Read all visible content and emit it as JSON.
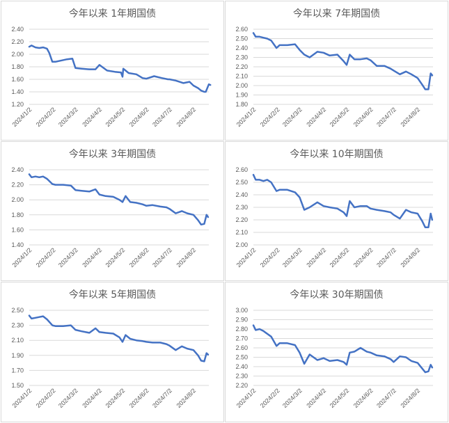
{
  "colors": {
    "series": "#4472c4",
    "grid": "#d9d9d9",
    "text": "#595959",
    "border": "#d9d9d9"
  },
  "chart_data": [
    {
      "type": "line",
      "title": "今年以来 1年期国债",
      "x_ticks": [
        "2024/1/2",
        "2024/2/2",
        "2024/3/2",
        "2024/4/2",
        "2024/5/2",
        "2024/6/2",
        "2024/7/2",
        "2024/8/2"
      ],
      "y_ticks": [
        "2.40",
        "2.20",
        "2.00",
        "1.80",
        "1.60",
        "1.40",
        "1.20"
      ],
      "ylim": [
        1.2,
        2.4
      ],
      "x": [
        "2024/1/2",
        "2024/1/5",
        "2024/1/10",
        "2024/1/15",
        "2024/1/20",
        "2024/1/25",
        "2024/1/28",
        "2024/2/1",
        "2024/2/5",
        "2024/2/20",
        "2024/2/27",
        "2024/3/2",
        "2024/3/10",
        "2024/3/20",
        "2024/3/28",
        "2024/4/2",
        "2024/4/12",
        "2024/4/22",
        "2024/4/30",
        "2024/5/2",
        "2024/5/3",
        "2024/5/10",
        "2024/5/20",
        "2024/5/28",
        "2024/6/2",
        "2024/6/12",
        "2024/6/22",
        "2024/6/30",
        "2024/7/2",
        "2024/7/10",
        "2024/7/20",
        "2024/7/28",
        "2024/8/2",
        "2024/8/8",
        "2024/8/12",
        "2024/8/16"
      ],
      "y": [
        2.12,
        2.14,
        2.11,
        2.1,
        2.11,
        2.09,
        2.02,
        1.88,
        1.88,
        1.92,
        1.93,
        1.78,
        1.77,
        1.76,
        1.76,
        1.83,
        1.74,
        1.72,
        1.71,
        1.64,
        1.77,
        1.7,
        1.68,
        1.62,
        1.61,
        1.65,
        1.62,
        1.6,
        1.6,
        1.58,
        1.54,
        1.56,
        1.5,
        1.46,
        1.42,
        1.4
      ],
      "series": [
        {
          "values_ext": [
            1.4,
            1.46,
            1.52,
            1.51
          ]
        }
      ]
    },
    {
      "type": "line",
      "title": "今年以来 7年期国债",
      "x_ticks": [
        "2024/1/2",
        "2024/2/2",
        "2024/3/2",
        "2024/4/2",
        "2024/5/2",
        "2024/6/2",
        "2024/7/2",
        "2024/8/2"
      ],
      "y_ticks": [
        "2.60",
        "2.50",
        "2.40",
        "2.30",
        "2.20",
        "2.10",
        "2.00",
        "1.90",
        "1.80"
      ],
      "ylim": [
        1.8,
        2.6
      ],
      "x": [
        "2024/1/2",
        "2024/1/5",
        "2024/1/10",
        "2024/1/15",
        "2024/1/20",
        "2024/1/25",
        "2024/2/1",
        "2024/2/5",
        "2024/2/15",
        "2024/2/25",
        "2024/3/2",
        "2024/3/8",
        "2024/3/15",
        "2024/3/25",
        "2024/4/2",
        "2024/4/10",
        "2024/4/20",
        "2024/4/28",
        "2024/5/2",
        "2024/5/6",
        "2024/5/12",
        "2024/5/20",
        "2024/5/28",
        "2024/6/2",
        "2024/6/10",
        "2024/6/20",
        "2024/6/28",
        "2024/7/2",
        "2024/7/10",
        "2024/7/18",
        "2024/7/25",
        "2024/8/2",
        "2024/8/8",
        "2024/8/12",
        "2024/8/16",
        "2024/8/19"
      ],
      "y": [
        2.56,
        2.52,
        2.52,
        2.51,
        2.5,
        2.48,
        2.4,
        2.43,
        2.43,
        2.44,
        2.38,
        2.33,
        2.3,
        2.36,
        2.35,
        2.32,
        2.33,
        2.26,
        2.22,
        2.33,
        2.28,
        2.28,
        2.29,
        2.27,
        2.21,
        2.21,
        2.18,
        2.16,
        2.12,
        2.15,
        2.12,
        2.08,
        2.01,
        1.96,
        1.96,
        2.13
      ],
      "series": [
        {
          "values_ext": [
            2.11
          ]
        }
      ]
    },
    {
      "type": "line",
      "title": "今年以来 3年期国债",
      "x_ticks": [
        "2024/1/2",
        "2024/2/2",
        "2024/3/2",
        "2024/4/2",
        "2024/5/2",
        "2024/6/2",
        "2024/7/2",
        "2024/8/2"
      ],
      "y_ticks": [
        "2.40",
        "2.20",
        "2.00",
        "1.80",
        "1.60",
        "1.40"
      ],
      "ylim": [
        1.4,
        2.4
      ],
      "x": [
        "2024/1/2",
        "2024/1/5",
        "2024/1/10",
        "2024/1/15",
        "2024/1/20",
        "2024/1/25",
        "2024/2/1",
        "2024/2/5",
        "2024/2/15",
        "2024/2/25",
        "2024/3/2",
        "2024/3/10",
        "2024/3/20",
        "2024/3/28",
        "2024/4/2",
        "2024/4/10",
        "2024/4/20",
        "2024/4/28",
        "2024/5/2",
        "2024/5/6",
        "2024/5/12",
        "2024/5/20",
        "2024/5/28",
        "2024/6/2",
        "2024/6/10",
        "2024/6/20",
        "2024/6/28",
        "2024/7/2",
        "2024/7/10",
        "2024/7/18",
        "2024/7/25",
        "2024/8/2",
        "2024/8/8",
        "2024/8/12",
        "2024/8/16",
        "2024/8/19"
      ],
      "y": [
        2.34,
        2.3,
        2.31,
        2.3,
        2.31,
        2.28,
        2.21,
        2.2,
        2.2,
        2.19,
        2.13,
        2.12,
        2.11,
        2.14,
        2.07,
        2.05,
        2.04,
        2.0,
        1.97,
        2.05,
        1.97,
        1.96,
        1.94,
        1.92,
        1.93,
        1.91,
        1.9,
        1.88,
        1.82,
        1.85,
        1.82,
        1.8,
        1.73,
        1.67,
        1.68,
        1.8
      ],
      "series": [
        {
          "values_ext": [
            1.77
          ]
        }
      ]
    },
    {
      "type": "line",
      "title": "今年以来 10年期国债",
      "x_ticks": [
        "2024/1/2",
        "2024/2/2",
        "2024/3/2",
        "2024/4/2",
        "2024/5/2",
        "2024/6/2",
        "2024/7/2",
        "2024/8/2"
      ],
      "y_ticks": [
        "2.60",
        "2.50",
        "2.40",
        "2.30",
        "2.20",
        "2.10",
        "2.00"
      ],
      "ylim": [
        2.0,
        2.6
      ],
      "x": [
        "2024/1/2",
        "2024/1/5",
        "2024/1/10",
        "2024/1/15",
        "2024/1/20",
        "2024/1/25",
        "2024/2/1",
        "2024/2/5",
        "2024/2/15",
        "2024/2/25",
        "2024/3/2",
        "2024/3/8",
        "2024/3/15",
        "2024/3/25",
        "2024/4/2",
        "2024/4/10",
        "2024/4/20",
        "2024/4/28",
        "2024/5/2",
        "2024/5/6",
        "2024/5/12",
        "2024/5/20",
        "2024/5/28",
        "2024/6/2",
        "2024/6/10",
        "2024/6/20",
        "2024/6/28",
        "2024/7/2",
        "2024/7/10",
        "2024/7/18",
        "2024/7/25",
        "2024/8/2",
        "2024/8/8",
        "2024/8/12",
        "2024/8/16",
        "2024/8/19"
      ],
      "y": [
        2.56,
        2.52,
        2.52,
        2.51,
        2.52,
        2.5,
        2.43,
        2.44,
        2.44,
        2.42,
        2.38,
        2.28,
        2.3,
        2.34,
        2.31,
        2.3,
        2.29,
        2.26,
        2.23,
        2.35,
        2.3,
        2.31,
        2.31,
        2.29,
        2.28,
        2.27,
        2.26,
        2.24,
        2.21,
        2.28,
        2.26,
        2.25,
        2.19,
        2.14,
        2.14,
        2.25
      ],
      "series": [
        {
          "values_ext": [
            2.2
          ]
        }
      ]
    },
    {
      "type": "line",
      "title": "今年以来 5年期国债",
      "x_ticks": [
        "2024/1/2",
        "2024/2/2",
        "2024/3/2",
        "2024/4/2",
        "2024/5/2",
        "2024/6/2",
        "2024/7/2",
        "2024/8/2"
      ],
      "y_ticks": [
        "2.50",
        "2.30",
        "2.10",
        "1.90",
        "1.70",
        "1.50"
      ],
      "ylim": [
        1.5,
        2.5
      ],
      "x": [
        "2024/1/2",
        "2024/1/5",
        "2024/1/10",
        "2024/1/15",
        "2024/1/20",
        "2024/1/25",
        "2024/2/1",
        "2024/2/5",
        "2024/2/15",
        "2024/2/25",
        "2024/3/2",
        "2024/3/10",
        "2024/3/20",
        "2024/3/28",
        "2024/4/2",
        "2024/4/10",
        "2024/4/20",
        "2024/4/28",
        "2024/5/2",
        "2024/5/6",
        "2024/5/12",
        "2024/5/20",
        "2024/5/28",
        "2024/6/2",
        "2024/6/10",
        "2024/6/20",
        "2024/6/28",
        "2024/7/2",
        "2024/7/10",
        "2024/7/18",
        "2024/7/25",
        "2024/8/2",
        "2024/8/8",
        "2024/8/12",
        "2024/8/16",
        "2024/8/19"
      ],
      "y": [
        2.43,
        2.39,
        2.4,
        2.41,
        2.42,
        2.38,
        2.3,
        2.29,
        2.29,
        2.3,
        2.24,
        2.22,
        2.2,
        2.26,
        2.21,
        2.2,
        2.19,
        2.14,
        2.08,
        2.17,
        2.12,
        2.1,
        2.09,
        2.08,
        2.07,
        2.07,
        2.05,
        2.03,
        1.97,
        2.02,
        1.99,
        1.97,
        1.9,
        1.83,
        1.82,
        1.93
      ],
      "series": [
        {
          "values_ext": [
            1.91
          ]
        }
      ]
    },
    {
      "type": "line",
      "title": "今年以来 30年期国债",
      "x_ticks": [
        "2024/1/2",
        "2024/2/2",
        "2024/3/2",
        "2024/4/2",
        "2024/5/2",
        "2024/6/2",
        "2024/7/2",
        "2024/8/2"
      ],
      "y_ticks": [
        "3.00",
        "2.90",
        "2.80",
        "2.70",
        "2.60",
        "2.50",
        "2.40",
        "2.30",
        "2.20"
      ],
      "ylim": [
        2.2,
        3.0
      ],
      "x": [
        "2024/1/2",
        "2024/1/5",
        "2024/1/10",
        "2024/1/15",
        "2024/1/20",
        "2024/1/25",
        "2024/2/1",
        "2024/2/5",
        "2024/2/15",
        "2024/2/25",
        "2024/3/2",
        "2024/3/8",
        "2024/3/15",
        "2024/3/25",
        "2024/4/2",
        "2024/4/10",
        "2024/4/20",
        "2024/4/28",
        "2024/5/2",
        "2024/5/6",
        "2024/5/12",
        "2024/5/20",
        "2024/5/28",
        "2024/6/2",
        "2024/6/10",
        "2024/6/20",
        "2024/6/28",
        "2024/7/2",
        "2024/7/10",
        "2024/7/18",
        "2024/7/25",
        "2024/8/2",
        "2024/8/8",
        "2024/8/12",
        "2024/8/16",
        "2024/8/19"
      ],
      "y": [
        2.84,
        2.79,
        2.8,
        2.78,
        2.75,
        2.72,
        2.62,
        2.65,
        2.65,
        2.63,
        2.55,
        2.43,
        2.53,
        2.47,
        2.49,
        2.46,
        2.47,
        2.45,
        2.42,
        2.55,
        2.56,
        2.6,
        2.56,
        2.55,
        2.52,
        2.51,
        2.48,
        2.45,
        2.51,
        2.5,
        2.46,
        2.44,
        2.38,
        2.34,
        2.35,
        2.42
      ],
      "series": [
        {
          "values_ext": [
            2.39
          ]
        }
      ]
    }
  ]
}
